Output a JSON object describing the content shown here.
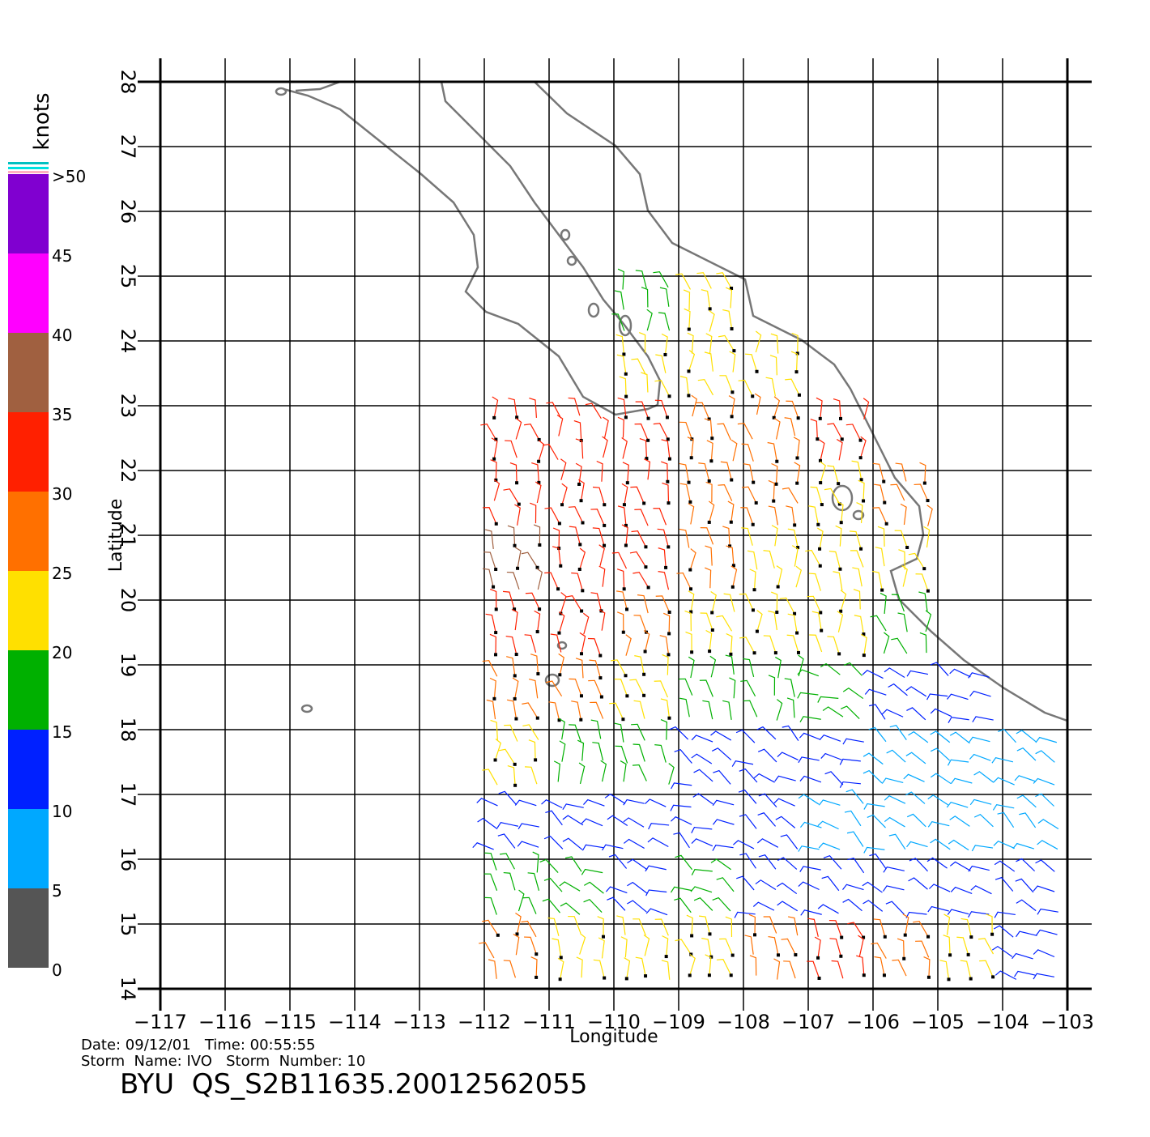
{
  "chart_data": {
    "type": "wind-field",
    "title": "BYU  QS_S2B11635.20012562055",
    "date_line": "Date: 09/12/01   Time: 00:55:55",
    "storm_line": "Storm  Name: IVO   Storm  Number: 10",
    "x_label": "Longitude",
    "y_label": "Latitude",
    "xlim": [
      -117,
      -103
    ],
    "ylim": [
      14,
      28
    ],
    "xticks": [
      {
        "value": -117,
        "label": "−117"
      },
      {
        "value": -116,
        "label": "−116"
      },
      {
        "value": -115,
        "label": "−115"
      },
      {
        "value": -114,
        "label": "−114"
      },
      {
        "value": -113,
        "label": "−113"
      },
      {
        "value": -112,
        "label": "−112"
      },
      {
        "value": -111,
        "label": "−111"
      },
      {
        "value": -110,
        "label": "−110"
      },
      {
        "value": -109,
        "label": "−109"
      },
      {
        "value": -108,
        "label": "−108"
      },
      {
        "value": -107,
        "label": "−107"
      },
      {
        "value": -106,
        "label": "−106"
      },
      {
        "value": -105,
        "label": "−105"
      },
      {
        "value": -104,
        "label": "−104"
      },
      {
        "value": -103,
        "label": "−103"
      }
    ],
    "yticks": [
      14,
      15,
      16,
      17,
      18,
      19,
      20,
      21,
      22,
      23,
      24,
      25,
      26,
      27,
      28
    ],
    "grid": true,
    "colorbar": {
      "title": "knots",
      "ticks": [
        0,
        5,
        10,
        15,
        20,
        25,
        30,
        35,
        40,
        45,
        {
          "value": 50,
          "label": ">50"
        }
      ],
      "colors": [
        "#555555",
        "#00a8ff",
        "#0020ff",
        "#00b000",
        "#ffe000",
        "#ff7000",
        "#ff2000",
        "#a06040",
        "#ff00ff",
        "#8000d0"
      ]
    },
    "cell_lats": [
      24.5,
      23.5,
      22.5,
      21.5,
      20.5,
      19.5,
      18.5,
      17.5,
      16.5,
      15.5,
      14.5
    ],
    "cell_lons": [
      -111.5,
      -110.5,
      -109.5,
      -108.5,
      -107.5,
      -106.5,
      -105.5,
      -104.5,
      -103.5
    ],
    "speeds": [
      [
        null,
        null,
        18,
        22,
        null,
        null,
        null,
        null,
        null
      ],
      [
        null,
        null,
        20,
        22,
        22,
        null,
        null,
        null,
        null
      ],
      [
        30,
        30,
        30,
        25,
        28,
        30,
        null,
        null,
        null
      ],
      [
        32,
        30,
        30,
        28,
        25,
        24,
        26,
        null,
        null
      ],
      [
        35,
        32,
        30,
        28,
        24,
        22,
        24,
        null,
        null
      ],
      [
        30,
        30,
        26,
        22,
        20,
        20,
        18,
        null,
        null
      ],
      [
        28,
        25,
        22,
        18,
        18,
        15,
        12,
        10,
        null
      ],
      [
        20,
        18,
        16,
        14,
        12,
        10,
        8,
        8,
        8
      ],
      [
        14,
        12,
        12,
        12,
        10,
        8,
        7,
        7,
        6
      ],
      [
        18,
        15,
        14,
        15,
        12,
        12,
        12,
        12,
        12
      ],
      [
        25,
        22,
        20,
        22,
        28,
        30,
        25,
        20,
        12
      ]
    ]
  }
}
